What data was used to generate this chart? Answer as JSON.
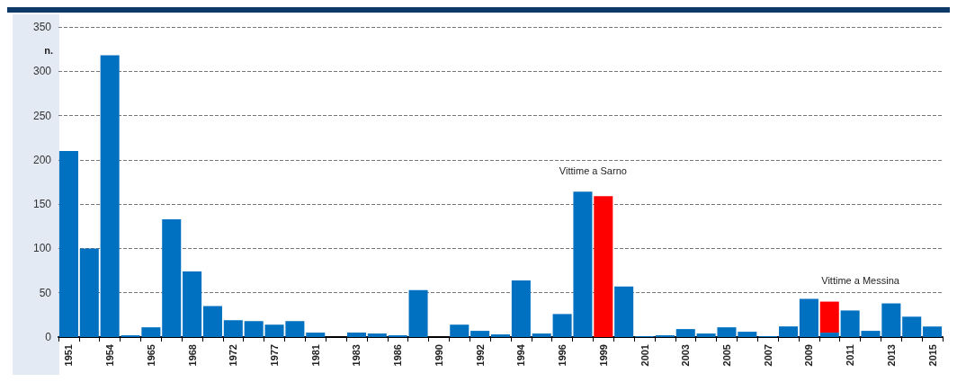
{
  "chart_data": {
    "type": "bar",
    "ylabel": "n.",
    "stacked": true,
    "categories": [
      "1951",
      null,
      "1954",
      null,
      "1965",
      null,
      "1968",
      null,
      "1972",
      null,
      "1977",
      null,
      "1981",
      null,
      "1983",
      null,
      "1986",
      null,
      "1990",
      null,
      "1992",
      null,
      "1994",
      null,
      "1996",
      null,
      "1999",
      null,
      "2001",
      null,
      "2003",
      null,
      "2005",
      null,
      "2007",
      null,
      "2009",
      null,
      "2011",
      null,
      "2013",
      null,
      "2015"
    ],
    "series": [
      {
        "color": "#0070c0",
        "values": [
          210,
          100,
          318,
          2,
          11,
          133,
          74,
          35,
          19,
          18,
          14,
          18,
          5,
          0,
          5,
          4,
          2,
          53,
          0,
          14,
          7,
          3,
          64,
          4,
          26,
          164,
          null,
          57,
          1,
          2,
          9,
          4,
          11,
          6,
          1,
          12,
          43,
          5,
          30,
          7,
          38,
          23,
          12
        ]
      },
      {
        "color": "#ff0000",
        "values": [
          null,
          null,
          null,
          null,
          null,
          null,
          null,
          null,
          null,
          null,
          null,
          null,
          null,
          null,
          null,
          null,
          null,
          null,
          null,
          null,
          null,
          null,
          null,
          null,
          null,
          null,
          159,
          null,
          null,
          null,
          null,
          null,
          null,
          null,
          null,
          null,
          null,
          35,
          null,
          null,
          null,
          null,
          null
        ]
      }
    ],
    "annotations": [
      "Vittime a Sarno",
      "Vittime a Messina"
    ],
    "ylim": [
      0,
      350
    ],
    "yticks": [
      0,
      50,
      100,
      150,
      200,
      250,
      300,
      350
    ],
    "grid": "y"
  }
}
